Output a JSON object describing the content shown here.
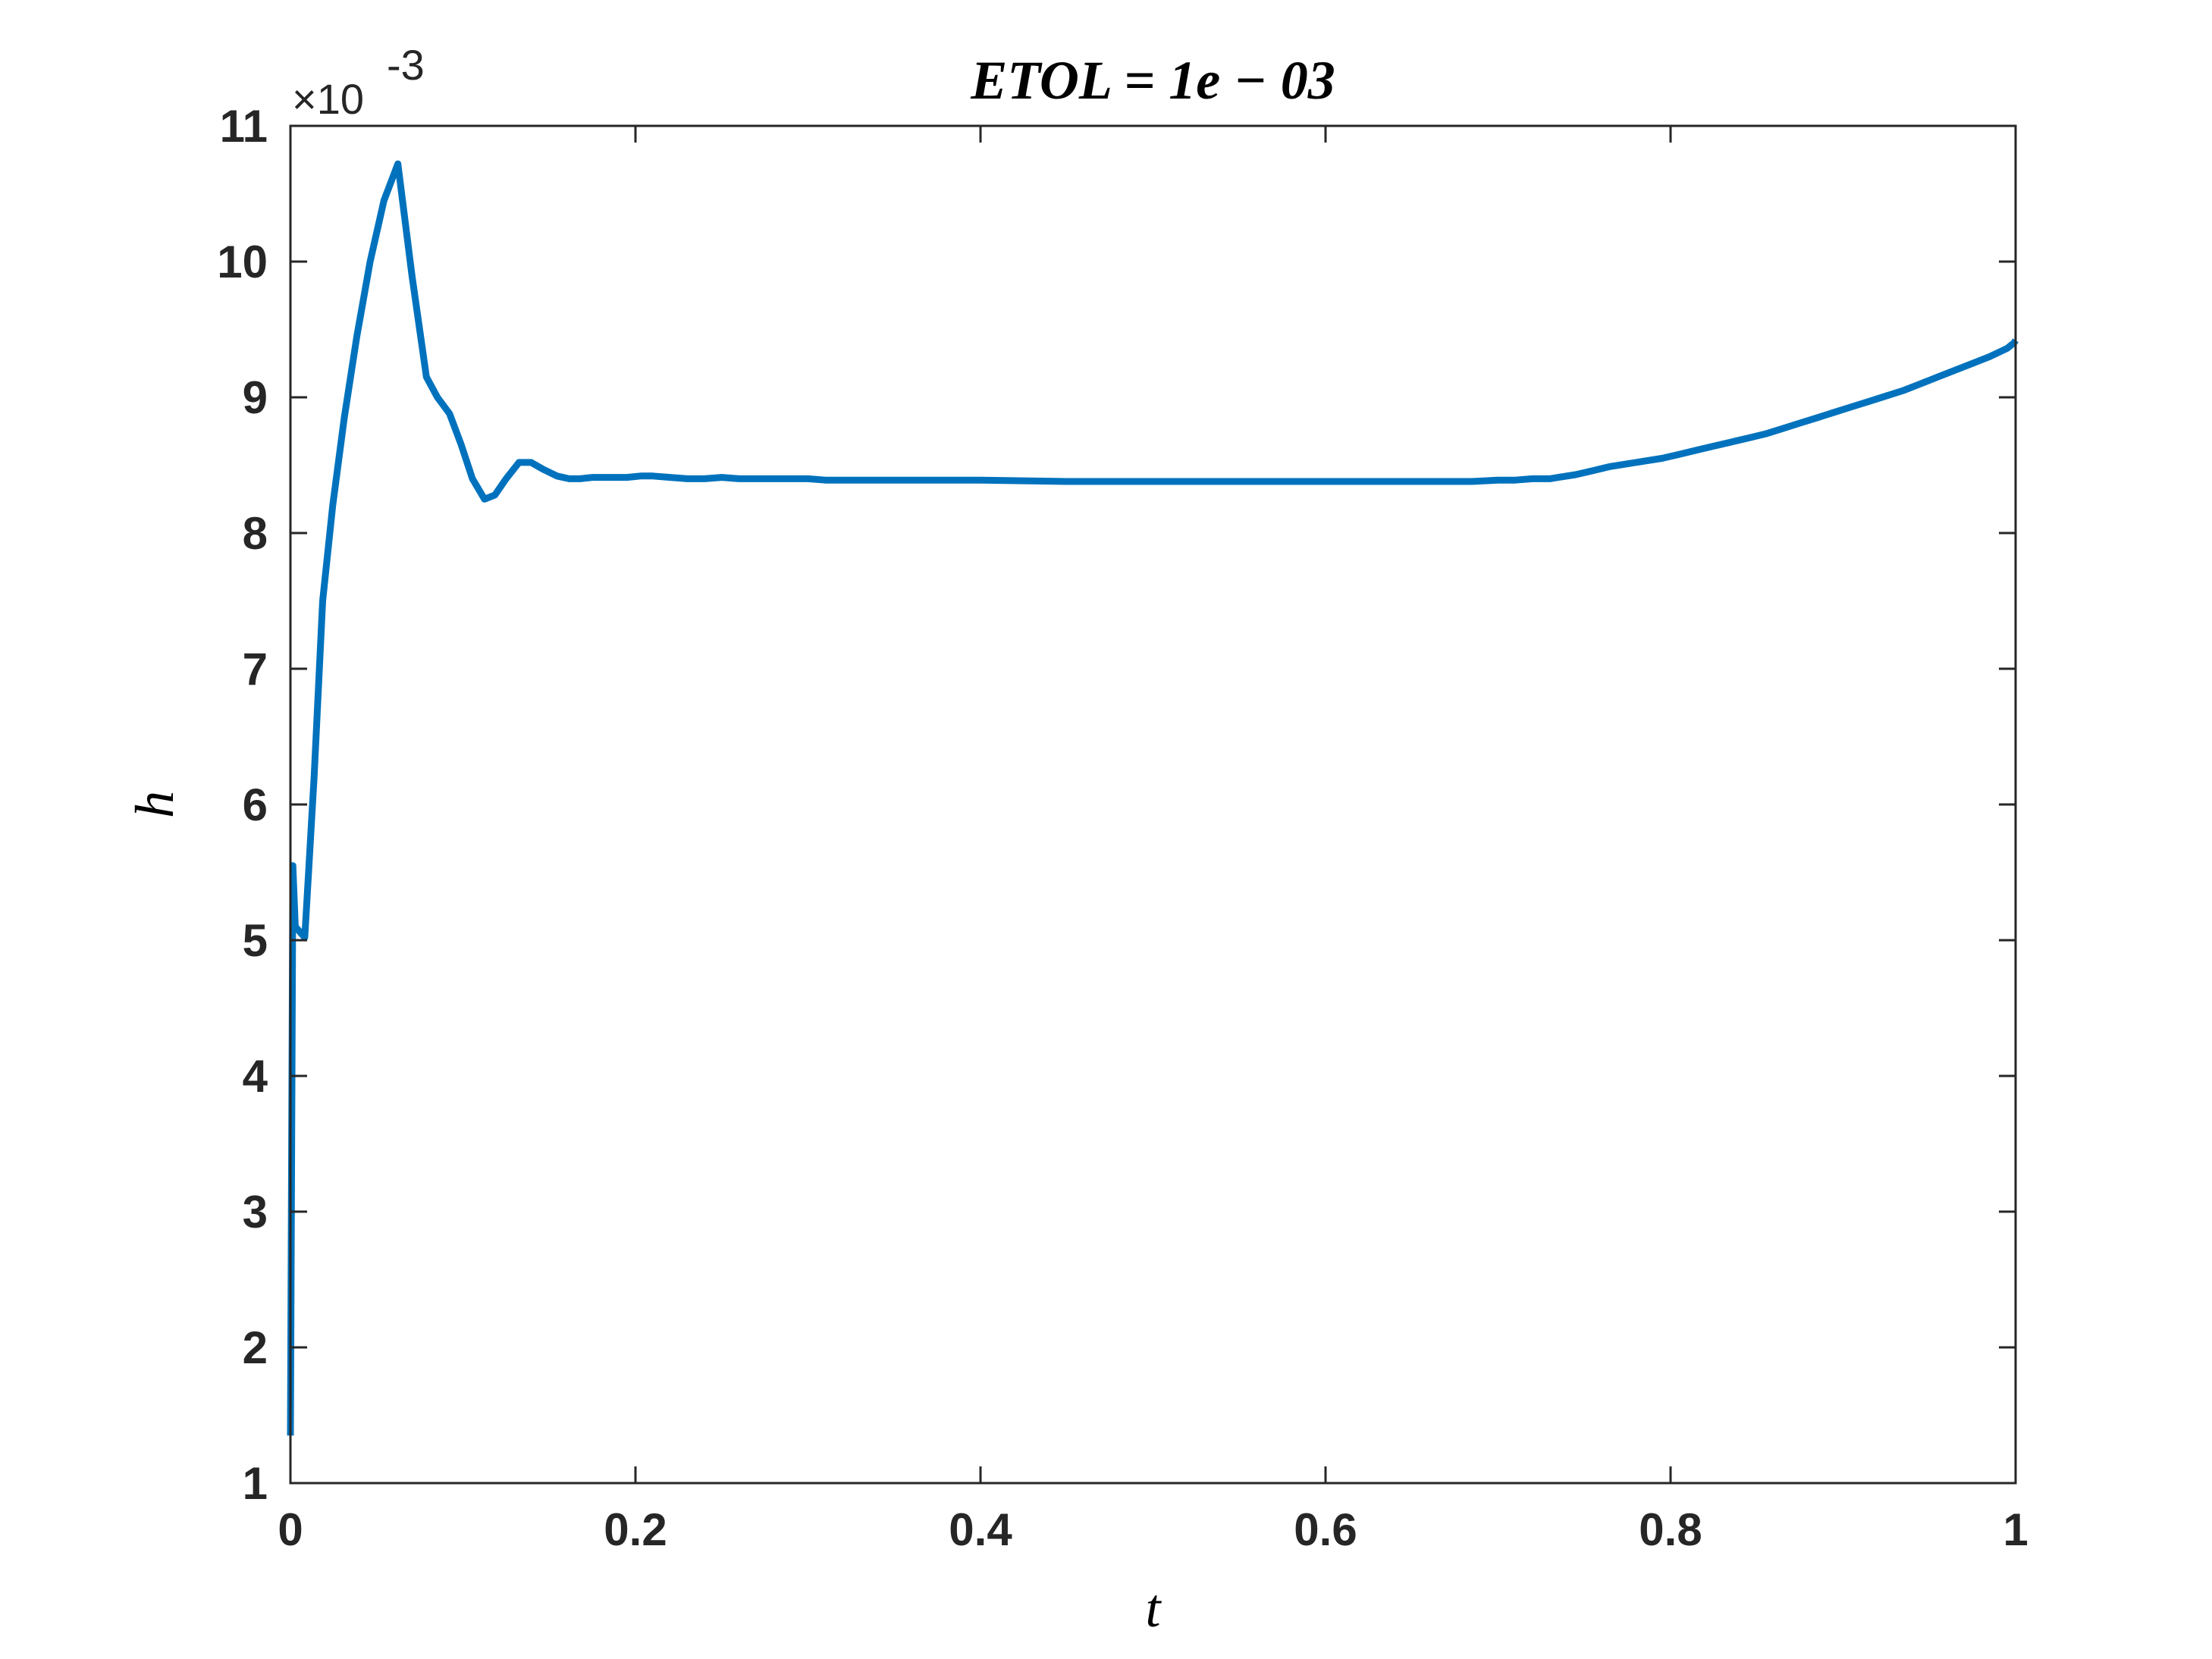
{
  "chart_data": {
    "type": "line",
    "title": "ETOL = 1e − 03",
    "xlabel": "t",
    "ylabel": "h",
    "exponent_prefix": "×10",
    "exponent_power": "-3",
    "xlim": [
      0,
      1
    ],
    "ylim": [
      1,
      11
    ],
    "xticks": [
      0,
      0.2,
      0.4,
      0.6,
      0.8,
      1
    ],
    "xtick_labels": [
      "0",
      "0.2",
      "0.4",
      "0.6",
      "0.8",
      "1"
    ],
    "yticks": [
      1,
      2,
      3,
      4,
      5,
      6,
      7,
      8,
      9,
      10,
      11
    ],
    "ytick_labels": [
      "1",
      "2",
      "3",
      "4",
      "5",
      "6",
      "7",
      "8",
      "9",
      "10",
      "11"
    ],
    "grid": false,
    "line_color": "#0072BD",
    "series": [
      {
        "x": [
          0,
          0.0014,
          0.0028,
          0.0083,
          0.0137,
          0.0187,
          0.0245,
          0.0312,
          0.0385,
          0.0462,
          0.0542,
          0.0623,
          0.0704,
          0.0788,
          0.0852,
          0.0922,
          0.099,
          0.1055,
          0.1125,
          0.1185,
          0.125,
          0.1325,
          0.1395,
          0.1465,
          0.1545,
          0.1615,
          0.168,
          0.175,
          0.1815,
          0.1885,
          0.195,
          0.203,
          0.21,
          0.22,
          0.23,
          0.24,
          0.25,
          0.26,
          0.27,
          0.28,
          0.29,
          0.3,
          0.31,
          0.35,
          0.4,
          0.45,
          0.5,
          0.55,
          0.6,
          0.65,
          0.675,
          0.685,
          0.7,
          0.71,
          0.72,
          0.73,
          0.735,
          0.745,
          0.755,
          0.765,
          0.775,
          0.785,
          0.795,
          0.805,
          0.815,
          0.825,
          0.835,
          0.845,
          0.855,
          0.865,
          0.875,
          0.885,
          0.895,
          0.905,
          0.915,
          0.925,
          0.935,
          0.945,
          0.955,
          0.965,
          0.975,
          0.985,
          0.995,
          0.999,
          1.0
        ],
        "y": [
          1.35,
          5.55,
          5.1,
          5.02,
          6.2,
          7.5,
          8.2,
          8.85,
          9.45,
          10.0,
          10.45,
          10.72,
          9.9,
          9.15,
          9.0,
          8.88,
          8.65,
          8.4,
          8.25,
          8.28,
          8.4,
          8.52,
          8.52,
          8.47,
          8.42,
          8.4,
          8.4,
          8.41,
          8.41,
          8.41,
          8.41,
          8.42,
          8.42,
          8.41,
          8.4,
          8.4,
          8.41,
          8.4,
          8.4,
          8.4,
          8.4,
          8.4,
          8.39,
          8.39,
          8.39,
          8.38,
          8.38,
          8.38,
          8.38,
          8.38,
          8.38,
          8.38,
          8.39,
          8.39,
          8.4,
          8.4,
          8.41,
          8.43,
          8.46,
          8.49,
          8.51,
          8.53,
          8.55,
          8.58,
          8.61,
          8.64,
          8.67,
          8.7,
          8.73,
          8.77,
          8.81,
          8.85,
          8.89,
          8.93,
          8.97,
          9.01,
          9.05,
          9.1,
          9.15,
          9.2,
          9.25,
          9.3,
          9.36,
          9.4,
          9.42
        ]
      }
    ]
  }
}
